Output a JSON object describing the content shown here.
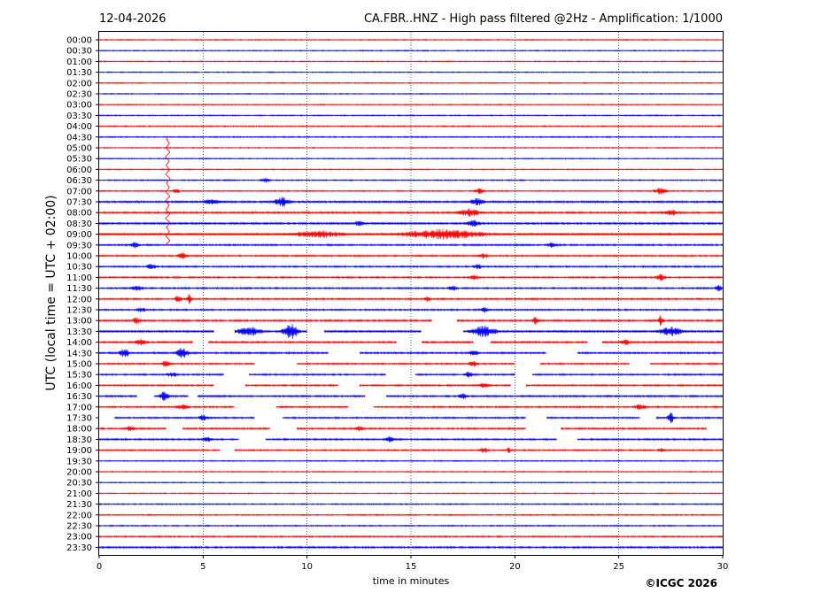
{
  "header": {
    "date": "12-04-2026",
    "title": "CA.FBR..HNZ - High pass filtered @2Hz - Amplification: 1/1000"
  },
  "copyright": "©ICGC 2026",
  "chart_data": {
    "type": "line",
    "subtype": "helicorder",
    "xlabel": "time in minutes",
    "ylabel": "UTC (local time = UTC + 02:00)",
    "xlim": [
      0,
      30
    ],
    "x_ticks": [
      0,
      5,
      10,
      15,
      20,
      25,
      30
    ],
    "x_tick_labels": [
      "0",
      "5",
      "10",
      "15",
      "20",
      "25",
      "30"
    ],
    "grid": "vertical dotted at 5-minute ticks",
    "trace_colors": [
      "#ff0000",
      "#0000ff"
    ],
    "rows": [
      {
        "label": "00:00",
        "color": "#ff0000",
        "noise": 0.6
      },
      {
        "label": "00:30",
        "color": "#0000ff",
        "noise": 0.6
      },
      {
        "label": "01:00",
        "color": "#ff0000",
        "noise": 0.6
      },
      {
        "label": "01:30",
        "color": "#0000ff",
        "noise": 0.6
      },
      {
        "label": "02:00",
        "color": "#ff0000",
        "noise": 0.6
      },
      {
        "label": "02:30",
        "color": "#0000ff",
        "noise": 0.6
      },
      {
        "label": "03:00",
        "color": "#ff0000",
        "noise": 0.6
      },
      {
        "label": "03:30",
        "color": "#0000ff",
        "noise": 0.6
      },
      {
        "label": "04:00",
        "color": "#ff0000",
        "noise": 0.7
      },
      {
        "label": "04:30",
        "color": "#0000ff",
        "noise": 0.7
      },
      {
        "label": "05:00",
        "color": "#ff0000",
        "noise": 0.6
      },
      {
        "label": "05:30",
        "color": "#0000ff",
        "noise": 0.6
      },
      {
        "label": "06:00",
        "color": "#ff0000",
        "noise": 0.6
      },
      {
        "label": "06:30",
        "color": "#0000ff",
        "noise": 0.7,
        "bursts": [
          [
            8.0,
            0.3,
            2.5
          ]
        ]
      },
      {
        "label": "07:00",
        "color": "#ff0000",
        "noise": 0.7,
        "bursts": [
          [
            3.7,
            0.2,
            3
          ],
          [
            18.3,
            0.3,
            3
          ],
          [
            27.0,
            0.4,
            4
          ]
        ]
      },
      {
        "label": "07:30",
        "color": "#0000ff",
        "noise": 1.2,
        "bursts": [
          [
            5.5,
            0.6,
            3
          ],
          [
            8.8,
            0.5,
            5
          ],
          [
            18.2,
            0.4,
            4
          ]
        ]
      },
      {
        "label": "08:00",
        "color": "#ff0000",
        "noise": 1.0,
        "bursts": [
          [
            17.8,
            0.8,
            4
          ],
          [
            27.5,
            0.6,
            3
          ]
        ]
      },
      {
        "label": "08:30",
        "color": "#0000ff",
        "noise": 1.1,
        "bursts": [
          [
            12.5,
            0.3,
            3
          ],
          [
            18.0,
            0.5,
            3
          ]
        ]
      },
      {
        "label": "09:00",
        "color": "#ff0000",
        "noise": 1.5,
        "bursts": [
          [
            10.5,
            1.5,
            3
          ],
          [
            16.5,
            2.5,
            5
          ]
        ]
      },
      {
        "label": "09:30",
        "color": "#0000ff",
        "noise": 0.9,
        "bursts": [
          [
            1.7,
            0.3,
            3
          ],
          [
            21.8,
            0.3,
            3
          ]
        ]
      },
      {
        "label": "10:00",
        "color": "#ff0000",
        "noise": 0.9,
        "bursts": [
          [
            4.0,
            0.3,
            3
          ],
          [
            18.5,
            0.3,
            3
          ]
        ]
      },
      {
        "label": "10:30",
        "color": "#0000ff",
        "noise": 0.9,
        "bursts": [
          [
            2.5,
            0.3,
            3
          ],
          [
            18.2,
            0.3,
            3
          ]
        ]
      },
      {
        "label": "11:00",
        "color": "#ff0000",
        "noise": 0.9,
        "bursts": [
          [
            18.0,
            0.3,
            3
          ],
          [
            27.0,
            0.3,
            4
          ]
        ]
      },
      {
        "label": "11:30",
        "color": "#0000ff",
        "noise": 0.9,
        "bursts": [
          [
            1.8,
            0.4,
            3
          ],
          [
            17.0,
            0.3,
            3
          ],
          [
            29.8,
            0.2,
            4
          ]
        ]
      },
      {
        "label": "12:00",
        "color": "#ff0000",
        "noise": 0.9,
        "bursts": [
          [
            3.8,
            0.2,
            5
          ],
          [
            4.3,
            0.2,
            5
          ],
          [
            15.8,
            0.2,
            3
          ]
        ]
      },
      {
        "label": "12:30",
        "color": "#0000ff",
        "noise": 0.9,
        "bursts": [
          [
            2.0,
            0.3,
            3
          ],
          [
            18.5,
            0.3,
            3
          ]
        ]
      },
      {
        "label": "13:00",
        "color": "#ff0000",
        "noise": 1.0,
        "bursts": [
          [
            1.8,
            0.3,
            3
          ],
          [
            21.0,
            0.2,
            5
          ],
          [
            27.0,
            0.2,
            6
          ]
        ],
        "gaps": [
          [
            16.0,
            17.2
          ]
        ]
      },
      {
        "label": "13:30",
        "color": "#0000ff",
        "noise": 1.2,
        "bursts": [
          [
            7.2,
            0.8,
            5
          ],
          [
            9.2,
            0.5,
            9
          ],
          [
            18.5,
            0.8,
            6
          ],
          [
            27.5,
            0.8,
            5
          ]
        ],
        "gaps": [
          [
            5.5,
            6.5
          ],
          [
            10.0,
            10.8
          ],
          [
            15.5,
            17.5
          ]
        ]
      },
      {
        "label": "14:00",
        "color": "#ff0000",
        "noise": 1.0,
        "bursts": [
          [
            2.0,
            0.4,
            3
          ],
          [
            25.3,
            0.3,
            3
          ]
        ],
        "gaps": [
          [
            4.5,
            5.2
          ],
          [
            14.3,
            15.5
          ],
          [
            18.0,
            18.8
          ],
          [
            23.5,
            24.2
          ]
        ]
      },
      {
        "label": "14:30",
        "color": "#0000ff",
        "noise": 1.0,
        "bursts": [
          [
            1.2,
            0.3,
            6
          ],
          [
            4.0,
            0.4,
            6
          ],
          [
            18.0,
            0.3,
            3
          ]
        ],
        "gaps": [
          [
            11.0,
            12.5
          ],
          [
            21.5,
            23.0
          ]
        ]
      },
      {
        "label": "15:00",
        "color": "#ff0000",
        "noise": 0.9,
        "bursts": [
          [
            3.2,
            0.3,
            3
          ],
          [
            18.0,
            0.3,
            3
          ]
        ],
        "gaps": [
          [
            7.5,
            9.5
          ],
          [
            20.0,
            21.2
          ],
          [
            25.5,
            26.5
          ]
        ]
      },
      {
        "label": "15:30",
        "color": "#0000ff",
        "noise": 0.9,
        "bursts": [
          [
            3.5,
            0.3,
            3
          ],
          [
            17.8,
            0.3,
            3
          ]
        ],
        "gaps": [
          [
            6.0,
            7.2
          ],
          [
            13.8,
            15.2
          ],
          [
            20.0,
            20.8
          ]
        ]
      },
      {
        "label": "16:00",
        "color": "#ff0000",
        "noise": 0.9,
        "bursts": [
          [
            18.5,
            0.3,
            3
          ]
        ],
        "gaps": [
          [
            5.5,
            7.0
          ],
          [
            11.5,
            12.5
          ],
          [
            19.8,
            20.5
          ]
        ]
      },
      {
        "label": "16:30",
        "color": "#0000ff",
        "noise": 1.0,
        "bursts": [
          [
            3.1,
            0.3,
            5
          ],
          [
            17.5,
            0.3,
            3
          ]
        ],
        "gaps": [
          [
            1.8,
            2.6
          ],
          [
            4.3,
            4.7
          ],
          [
            12.8,
            13.8
          ]
        ]
      },
      {
        "label": "17:00",
        "color": "#ff0000",
        "noise": 0.9,
        "bursts": [
          [
            4.0,
            0.4,
            3
          ],
          [
            26.0,
            0.4,
            3
          ]
        ],
        "gaps": [
          [
            6.5,
            8.5
          ],
          [
            12.0,
            13.2
          ]
        ]
      },
      {
        "label": "17:30",
        "color": "#0000ff",
        "noise": 0.9,
        "bursts": [
          [
            5.0,
            0.3,
            3
          ],
          [
            27.5,
            0.2,
            6
          ]
        ],
        "gaps": [
          [
            0.0,
            0.7
          ],
          [
            7.5,
            8.8
          ],
          [
            20.5,
            21.5
          ],
          [
            26.0,
            26.8
          ]
        ]
      },
      {
        "label": "18:00",
        "color": "#ff0000",
        "noise": 0.9,
        "bursts": [
          [
            1.5,
            0.3,
            3
          ],
          [
            12.5,
            0.3,
            3
          ]
        ],
        "gaps": [
          [
            3.2,
            4.0
          ],
          [
            8.2,
            9.5
          ],
          [
            20.5,
            22.2
          ],
          [
            29.2,
            30.0
          ]
        ]
      },
      {
        "label": "18:30",
        "color": "#0000ff",
        "noise": 0.9,
        "bursts": [
          [
            5.2,
            0.3,
            3
          ],
          [
            14.0,
            0.3,
            3
          ]
        ],
        "gaps": [
          [
            6.7,
            8.0
          ],
          [
            22.0,
            23.0
          ]
        ]
      },
      {
        "label": "19:00",
        "color": "#ff0000",
        "noise": 0.8,
        "bursts": [
          [
            18.5,
            0.3,
            3
          ],
          [
            19.7,
            0.1,
            6
          ],
          [
            27.0,
            0.2,
            3
          ]
        ],
        "gaps": [
          [
            5.8,
            6.5
          ]
        ]
      },
      {
        "label": "19:30",
        "color": "#0000ff",
        "noise": 0.6
      },
      {
        "label": "20:00",
        "color": "#ff0000",
        "noise": 0.6
      },
      {
        "label": "20:30",
        "color": "#0000ff",
        "noise": 0.6
      },
      {
        "label": "21:00",
        "color": "#ff0000",
        "noise": 0.6
      },
      {
        "label": "21:30",
        "color": "#0000ff",
        "noise": 0.7
      },
      {
        "label": "22:00",
        "color": "#ff0000",
        "noise": 0.7
      },
      {
        "label": "22:30",
        "color": "#0000ff",
        "noise": 0.7
      },
      {
        "label": "23:00",
        "color": "#ff0000",
        "noise": 0.8
      },
      {
        "label": "23:30",
        "color": "#0000ff",
        "noise": 1.0
      }
    ],
    "events": [
      {
        "row": "05:00",
        "x": 3.3,
        "color": "#ff0000",
        "span_rows": 9
      }
    ]
  }
}
